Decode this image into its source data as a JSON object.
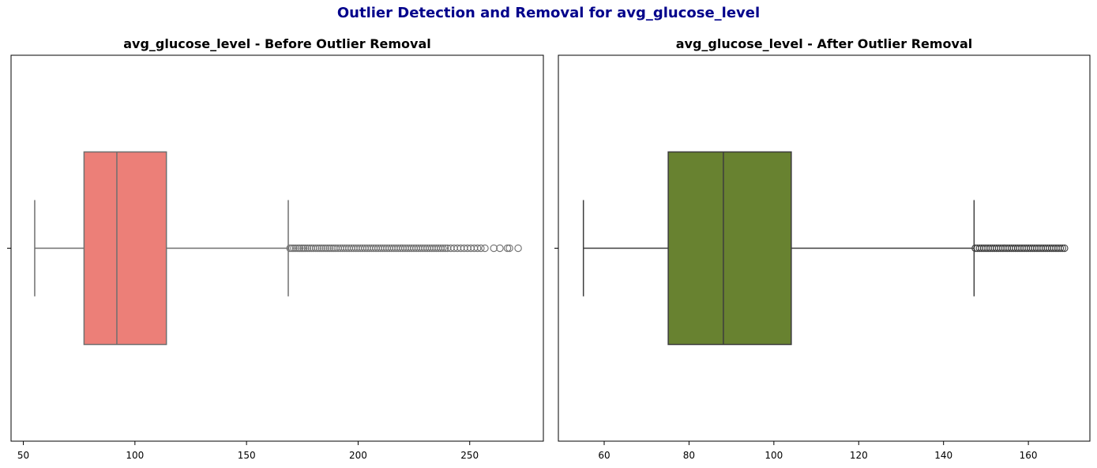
{
  "page": {
    "suptitle": "Outlier Detection and Removal for avg_glucose_level"
  },
  "chart_data": [
    {
      "type": "box",
      "title": "avg_glucose_level - Before Outlier Removal",
      "xlabel": "",
      "ylabel": "",
      "xlim": [
        44.5,
        283
      ],
      "xticks": [
        50,
        100,
        150,
        200,
        250
      ],
      "box_color": "#ec7f78",
      "line_color": "#6f6f6f",
      "whisker_low": 55.1,
      "q1": 77.2,
      "median": 91.9,
      "q3": 114.1,
      "whisker_high": 168.7,
      "outliers": [
        169.5,
        170.4,
        171.2,
        172.1,
        173.0,
        173.8,
        174.8,
        175.6,
        176.4,
        177.3,
        178.2,
        179.1,
        180.0,
        181.0,
        181.9,
        182.8,
        183.7,
        184.6,
        185.5,
        186.4,
        187.3,
        188.2,
        189.1,
        190.0,
        191.0,
        192.0,
        193.0,
        194.0,
        195.0,
        196.0,
        197.0,
        198.0,
        199.0,
        200.0,
        201.0,
        202.0,
        203.0,
        204.0,
        205.0,
        206.0,
        207.0,
        208.0,
        209.0,
        210.0,
        211.0,
        212.0,
        213.0,
        214.0,
        215.0,
        216.0,
        217.0,
        218.0,
        219.0,
        220.0,
        221.0,
        222.0,
        223.0,
        224.0,
        225.0,
        226.0,
        227.0,
        228.0,
        229.0,
        230.0,
        231.0,
        232.0,
        233.0,
        234.0,
        235.0,
        236.0,
        237.0,
        238.0,
        239.0,
        240.0,
        241.5,
        243.0,
        244.5,
        246.0,
        247.5,
        249.0,
        250.5,
        252.0,
        253.5,
        255.0,
        256.8,
        260.8,
        263.5,
        266.9,
        267.8,
        271.7
      ]
    },
    {
      "type": "box",
      "title": "avg_glucose_level - After Outlier Removal",
      "xlabel": "",
      "ylabel": "",
      "xlim": [
        49.2,
        174.5
      ],
      "xticks": [
        60,
        80,
        100,
        120,
        140,
        160
      ],
      "box_color": "#688230",
      "line_color": "#3d3d3d",
      "whisker_low": 55.1,
      "q1": 75.1,
      "median": 88.1,
      "q3": 104.1,
      "whisker_high": 147.2,
      "outliers": [
        147.5,
        148.0,
        148.5,
        149.0,
        149.5,
        150.0,
        150.5,
        151.0,
        151.5,
        152.0,
        152.5,
        153.0,
        153.5,
        154.0,
        154.5,
        155.0,
        155.5,
        156.0,
        156.5,
        157.0,
        157.5,
        158.0,
        158.5,
        159.0,
        159.5,
        160.0,
        160.5,
        161.0,
        161.5,
        162.0,
        162.5,
        163.0,
        163.5,
        164.0,
        164.5,
        165.0,
        165.5,
        166.0,
        166.5,
        167.0,
        167.5,
        168.0,
        168.5
      ]
    }
  ]
}
